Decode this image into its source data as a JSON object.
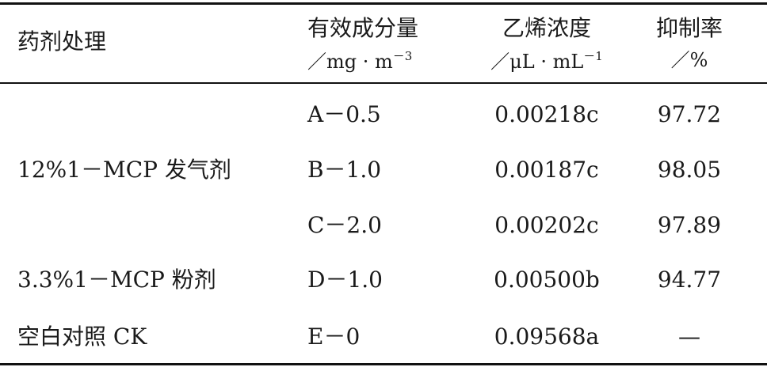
{
  "table": {
    "headers": {
      "treatment": "药剂处理",
      "dose": "有效成分量",
      "dose_unit_prefix": "／mg · m",
      "dose_unit_exp": "－3",
      "ethylene": "乙烯浓度",
      "ethylene_unit_prefix": "／μL · mL",
      "ethylene_unit_exp": "－1",
      "inhibition": "抑制率",
      "inhibition_unit": "／%"
    },
    "groups": {
      "g1": "12%1－MCP 发气剂",
      "g2": "3.3%1－MCP 粉剂",
      "g3": "空白对照 CK"
    },
    "rows": [
      {
        "dose": "A－0.5",
        "ethylene": "0.00218c",
        "inhibition": "97.72"
      },
      {
        "dose": "B－1.0",
        "ethylene": "0.00187c",
        "inhibition": "98.05"
      },
      {
        "dose": "C－2.0",
        "ethylene": "0.00202c",
        "inhibition": "97.89"
      },
      {
        "dose": "D－1.0",
        "ethylene": "0.00500b",
        "inhibition": "94.77"
      },
      {
        "dose": "E－0",
        "ethylene": "0.09568a",
        "inhibition": "—"
      }
    ]
  }
}
